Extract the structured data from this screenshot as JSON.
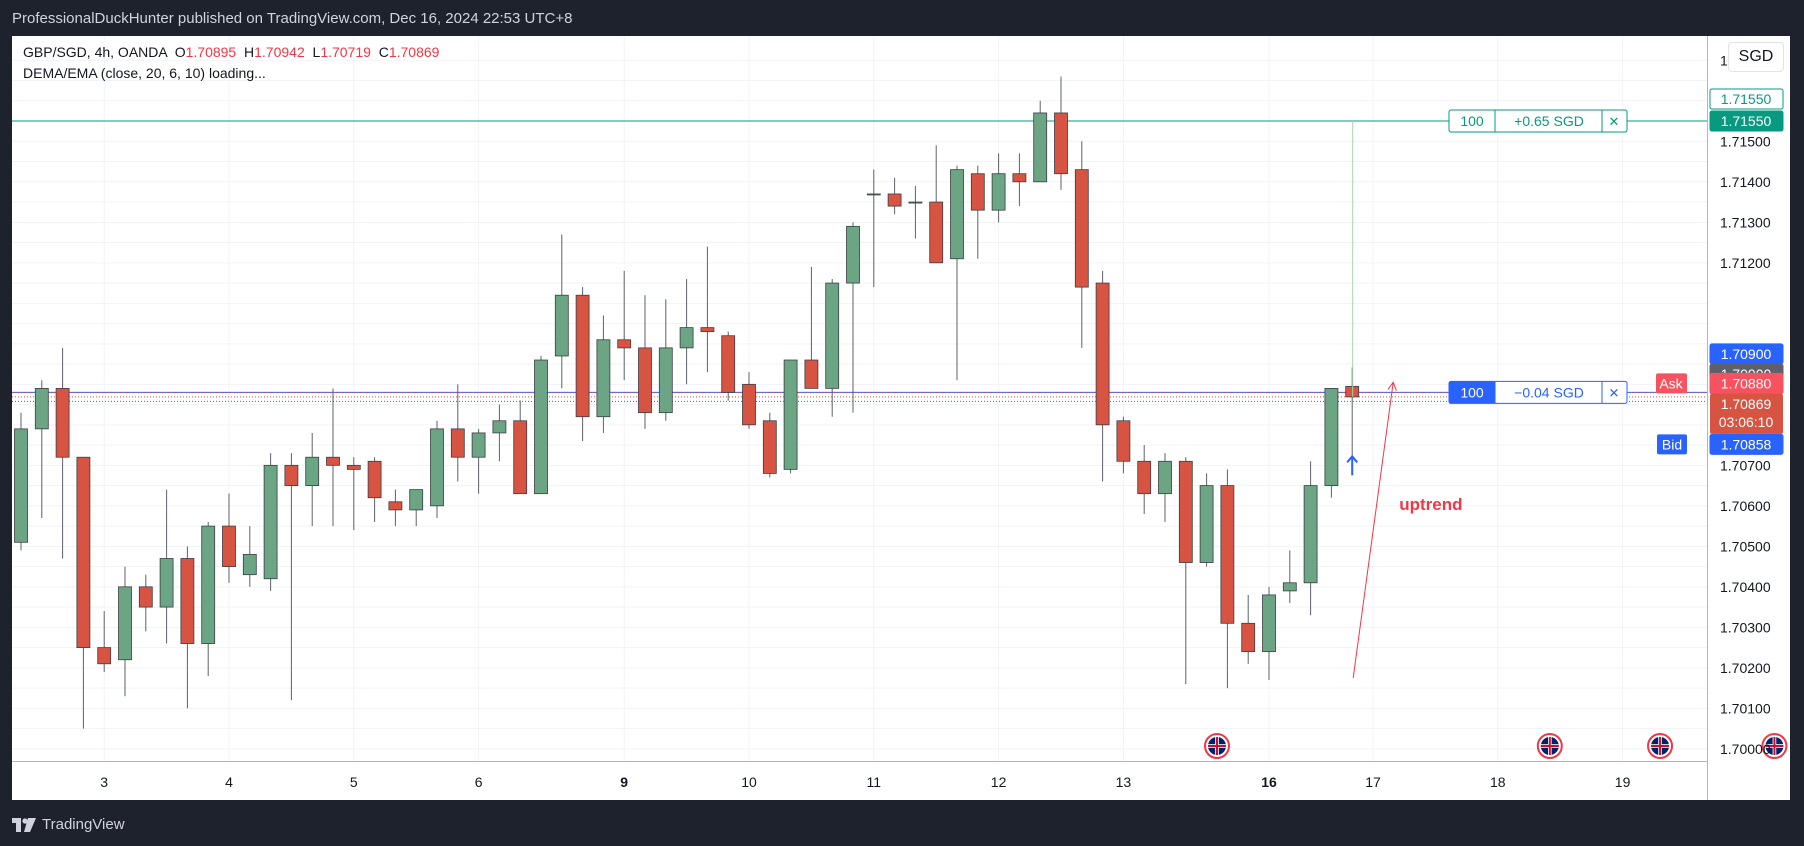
{
  "header": {
    "publisher": "ProfessionalDuckHunter published on TradingView.com, Dec 16, 2024 22:53 UTC+8"
  },
  "legend": {
    "symbol": "GBP/SGD, 4h, OANDA",
    "o_label": "O",
    "o": "1.70895",
    "h_label": "H",
    "h": "1.70942",
    "l_label": "L",
    "l": "1.70719",
    "c_label": "C",
    "c": "1.70869",
    "indicator": "DEMA/EMA (close, 20, 6, 10) loading..."
  },
  "currency_button": "SGD",
  "positions": {
    "take_profit": {
      "qty": "100",
      "pnl": "+0.65 SGD",
      "close": "✕",
      "price": "1.71550",
      "color": "#089981"
    },
    "entry": {
      "qty": "100",
      "pnl": "−0.04 SGD",
      "close": "✕",
      "price": "1.70880",
      "color": "#2962ff"
    }
  },
  "price_labels": {
    "tp_outline": "1.71550",
    "tp_fill": "1.71550",
    "blue": "1.70900",
    "dark": "1.70900",
    "red": "1.70899",
    "ask_tag": "Ask",
    "ask": "1.70880",
    "last": "1.70869",
    "countdown": "03:06:10",
    "bid_tag": "Bid",
    "bid": "1.70858"
  },
  "annotation": {
    "text": "uptrend",
    "color": "#f23645"
  },
  "footer": {
    "logo": "TradingView"
  },
  "colors": {
    "up": "#6ba583",
    "down": "#d75442",
    "grid": "#f0f3fa",
    "axis_text": "#131722"
  },
  "chart_data": {
    "type": "candlestick",
    "symbol": "GBP/SGD",
    "timeframe": "4h",
    "y_ticks": [
      "1.71700",
      "1.71500",
      "1.71400",
      "1.71300",
      "1.71200",
      "1.70700",
      "1.70600",
      "1.70500",
      "1.70400",
      "1.70300",
      "1.70200",
      "1.70100",
      "1.70000"
    ],
    "ylim": [
      1.6997,
      1.7176
    ],
    "x_ticks": [
      {
        "label": "3",
        "index": 4,
        "bold": false
      },
      {
        "label": "4",
        "index": 10,
        "bold": false
      },
      {
        "label": "5",
        "index": 16,
        "bold": false
      },
      {
        "label": "6",
        "index": 22,
        "bold": false
      },
      {
        "label": "9",
        "index": 29,
        "bold": true
      },
      {
        "label": "10",
        "index": 35,
        "bold": false
      },
      {
        "label": "11",
        "index": 41,
        "bold": false
      },
      {
        "label": "12",
        "index": 47,
        "bold": false
      },
      {
        "label": "13",
        "index": 53,
        "bold": false
      },
      {
        "label": "16",
        "index": 60,
        "bold": true
      },
      {
        "label": "17",
        "index": 65,
        "bold": false
      },
      {
        "label": "18",
        "index": 71,
        "bold": false
      },
      {
        "label": "19",
        "index": 77,
        "bold": false
      }
    ],
    "candles": [
      {
        "o": 1.7051,
        "h": 1.7083,
        "l": 1.7049,
        "c": 1.7079
      },
      {
        "o": 1.7079,
        "h": 1.7091,
        "l": 1.7057,
        "c": 1.7089
      },
      {
        "o": 1.7089,
        "h": 1.7099,
        "l": 1.7047,
        "c": 1.7072
      },
      {
        "o": 1.7072,
        "h": 1.7072,
        "l": 1.7005,
        "c": 1.7025
      },
      {
        "o": 1.7025,
        "h": 1.7034,
        "l": 1.7019,
        "c": 1.7021
      },
      {
        "o": 1.7022,
        "h": 1.7045,
        "l": 1.7013,
        "c": 1.704
      },
      {
        "o": 1.704,
        "h": 1.7043,
        "l": 1.7029,
        "c": 1.7035
      },
      {
        "o": 1.7035,
        "h": 1.7064,
        "l": 1.7026,
        "c": 1.7047
      },
      {
        "o": 1.7047,
        "h": 1.705,
        "l": 1.701,
        "c": 1.7026
      },
      {
        "o": 1.7026,
        "h": 1.7056,
        "l": 1.7018,
        "c": 1.7055
      },
      {
        "o": 1.7055,
        "h": 1.7063,
        "l": 1.7041,
        "c": 1.7045
      },
      {
        "o": 1.7043,
        "h": 1.7055,
        "l": 1.704,
        "c": 1.7048
      },
      {
        "o": 1.7042,
        "h": 1.7073,
        "l": 1.7039,
        "c": 1.707
      },
      {
        "o": 1.707,
        "h": 1.7073,
        "l": 1.7012,
        "c": 1.7065
      },
      {
        "o": 1.7065,
        "h": 1.7078,
        "l": 1.7055,
        "c": 1.7072
      },
      {
        "o": 1.7072,
        "h": 1.7089,
        "l": 1.7055,
        "c": 1.707
      },
      {
        "o": 1.707,
        "h": 1.7072,
        "l": 1.7054,
        "c": 1.7069
      },
      {
        "o": 1.7071,
        "h": 1.7072,
        "l": 1.7056,
        "c": 1.7062
      },
      {
        "o": 1.7061,
        "h": 1.7064,
        "l": 1.7055,
        "c": 1.7059
      },
      {
        "o": 1.7059,
        "h": 1.7064,
        "l": 1.7055,
        "c": 1.7064
      },
      {
        "o": 1.706,
        "h": 1.7081,
        "l": 1.7057,
        "c": 1.7079
      },
      {
        "o": 1.7079,
        "h": 1.709,
        "l": 1.7066,
        "c": 1.7072
      },
      {
        "o": 1.7072,
        "h": 1.7079,
        "l": 1.7063,
        "c": 1.7078
      },
      {
        "o": 1.7078,
        "h": 1.7085,
        "l": 1.7071,
        "c": 1.7081
      },
      {
        "o": 1.7081,
        "h": 1.7086,
        "l": 1.7064,
        "c": 1.7063
      },
      {
        "o": 1.7063,
        "h": 1.7097,
        "l": 1.7063,
        "c": 1.7096
      },
      {
        "o": 1.7097,
        "h": 1.7127,
        "l": 1.7089,
        "c": 1.7112
      },
      {
        "o": 1.7112,
        "h": 1.7114,
        "l": 1.7076,
        "c": 1.7082
      },
      {
        "o": 1.7082,
        "h": 1.7107,
        "l": 1.7078,
        "c": 1.7101
      },
      {
        "o": 1.7101,
        "h": 1.7118,
        "l": 1.7091,
        "c": 1.7099
      },
      {
        "o": 1.7099,
        "h": 1.7112,
        "l": 1.7079,
        "c": 1.7083
      },
      {
        "o": 1.7083,
        "h": 1.7111,
        "l": 1.7081,
        "c": 1.7099
      },
      {
        "o": 1.7099,
        "h": 1.7116,
        "l": 1.709,
        "c": 1.7104
      },
      {
        "o": 1.7104,
        "h": 1.7124,
        "l": 1.7093,
        "c": 1.7103
      },
      {
        "o": 1.7102,
        "h": 1.7103,
        "l": 1.7086,
        "c": 1.7088
      },
      {
        "o": 1.709,
        "h": 1.7093,
        "l": 1.7079,
        "c": 1.708
      },
      {
        "o": 1.7081,
        "h": 1.7083,
        "l": 1.7067,
        "c": 1.7068
      },
      {
        "o": 1.7069,
        "h": 1.7096,
        "l": 1.7068,
        "c": 1.7096
      },
      {
        "o": 1.7096,
        "h": 1.7119,
        "l": 1.7089,
        "c": 1.7089
      },
      {
        "o": 1.7089,
        "h": 1.7116,
        "l": 1.7082,
        "c": 1.7115
      },
      {
        "o": 1.7115,
        "h": 1.713,
        "l": 1.7083,
        "c": 1.7129
      },
      {
        "o": 1.7137,
        "h": 1.7143,
        "l": 1.7114,
        "c": 1.7137
      },
      {
        "o": 1.7137,
        "h": 1.7141,
        "l": 1.7132,
        "c": 1.7134
      },
      {
        "o": 1.7135,
        "h": 1.7139,
        "l": 1.7126,
        "c": 1.7135
      },
      {
        "o": 1.7135,
        "h": 1.7149,
        "l": 1.712,
        "c": 1.712
      },
      {
        "o": 1.7121,
        "h": 1.7144,
        "l": 1.7091,
        "c": 1.7143
      },
      {
        "o": 1.7142,
        "h": 1.7144,
        "l": 1.7121,
        "c": 1.7133
      },
      {
        "o": 1.7133,
        "h": 1.7147,
        "l": 1.713,
        "c": 1.7142
      },
      {
        "o": 1.7142,
        "h": 1.7147,
        "l": 1.7134,
        "c": 1.714
      },
      {
        "o": 1.714,
        "h": 1.716,
        "l": 1.714,
        "c": 1.7157
      },
      {
        "o": 1.7157,
        "h": 1.7166,
        "l": 1.7138,
        "c": 1.7142
      },
      {
        "o": 1.7143,
        "h": 1.715,
        "l": 1.7099,
        "c": 1.7114
      },
      {
        "o": 1.7115,
        "h": 1.7118,
        "l": 1.7066,
        "c": 1.708
      },
      {
        "o": 1.7081,
        "h": 1.7082,
        "l": 1.7068,
        "c": 1.7071
      },
      {
        "o": 1.7071,
        "h": 1.7075,
        "l": 1.7058,
        "c": 1.7063
      },
      {
        "o": 1.7063,
        "h": 1.7073,
        "l": 1.7056,
        "c": 1.7071
      },
      {
        "o": 1.7071,
        "h": 1.7072,
        "l": 1.7016,
        "c": 1.7046
      },
      {
        "o": 1.7046,
        "h": 1.7068,
        "l": 1.7045,
        "c": 1.7065
      },
      {
        "o": 1.7065,
        "h": 1.7069,
        "l": 1.7015,
        "c": 1.7031
      },
      {
        "o": 1.7031,
        "h": 1.7038,
        "l": 1.7021,
        "c": 1.7024
      },
      {
        "o": 1.7024,
        "h": 1.704,
        "l": 1.7017,
        "c": 1.7038
      },
      {
        "o": 1.7039,
        "h": 1.7049,
        "l": 1.7036,
        "c": 1.7041
      },
      {
        "o": 1.7041,
        "h": 1.7071,
        "l": 1.7033,
        "c": 1.7065
      },
      {
        "o": 1.7065,
        "h": 1.7089,
        "l": 1.7062,
        "c": 1.7089
      },
      {
        "o": 1.70895,
        "h": 1.70942,
        "l": 1.70719,
        "c": 1.70869
      }
    ]
  }
}
